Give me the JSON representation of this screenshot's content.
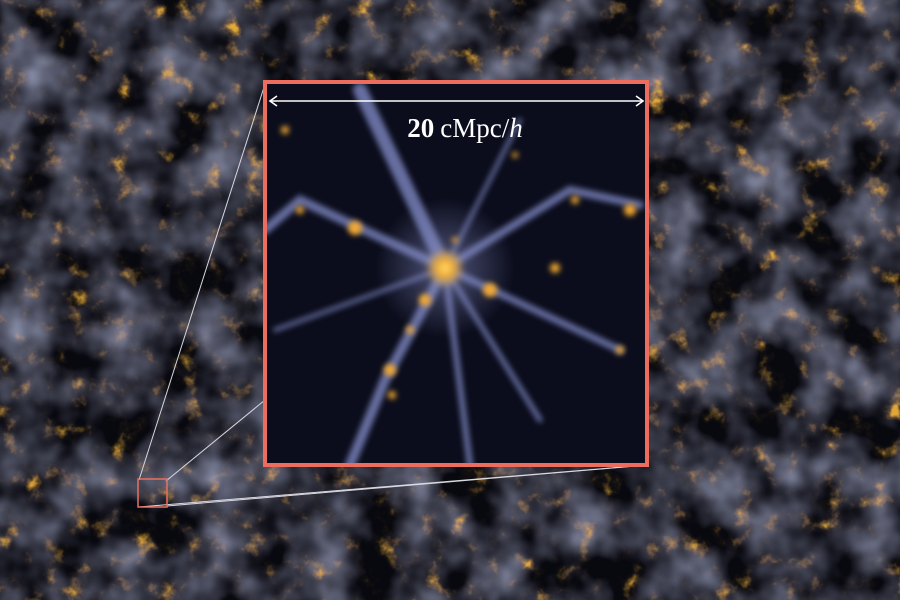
{
  "scale_bar": {
    "number": "20",
    "unit": "cMpc/",
    "variable": "h"
  }
}
